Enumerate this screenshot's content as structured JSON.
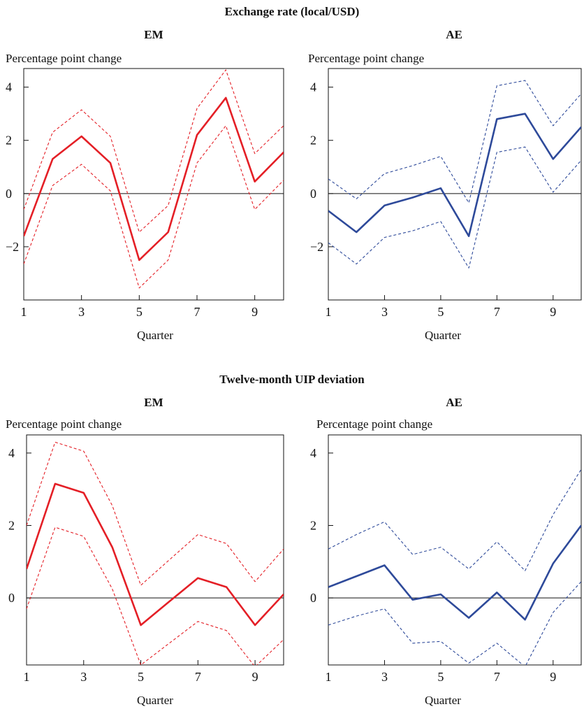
{
  "sections": [
    {
      "title": "Exchange rate (local/USD)",
      "panels": [
        {
          "title": "EM",
          "ylabel": "Percentage point change",
          "xlabel": "Quarter"
        },
        {
          "title": "AE",
          "ylabel": "Percentage point change",
          "xlabel": "Quarter"
        }
      ]
    },
    {
      "title": "Twelve-month UIP deviation",
      "panels": [
        {
          "title": "EM",
          "ylabel": "Percentage point change",
          "xlabel": "Quarter"
        },
        {
          "title": "AE",
          "ylabel": "Percentage point change",
          "xlabel": "Quarter"
        }
      ]
    }
  ],
  "colors": {
    "em": "#e41f26",
    "ae": "#2e4a9a",
    "axis": "#111111",
    "zero_line": "#111111"
  },
  "chart_data": [
    {
      "type": "line",
      "section": "Exchange rate (local/USD)",
      "title": "EM",
      "xlabel": "Quarter",
      "ylabel": "Percentage point change",
      "xlim": [
        1,
        10
      ],
      "ylim": [
        -4,
        4.7
      ],
      "x_ticks": [
        1,
        3,
        5,
        7,
        9
      ],
      "y_ticks": [
        -2,
        0,
        2,
        4
      ],
      "y_tick_labels": [
        "−2",
        "0",
        "2",
        "4"
      ],
      "x": [
        1,
        2,
        3,
        4,
        5,
        6,
        7,
        8,
        9,
        10
      ],
      "series": [
        {
          "role": "estimate",
          "values": [
            -1.6,
            1.3,
            2.15,
            1.15,
            -2.5,
            -1.45,
            2.2,
            3.6,
            0.45,
            1.55
          ]
        },
        {
          "role": "upper",
          "values": [
            -0.6,
            2.3,
            3.15,
            2.15,
            -1.45,
            -0.45,
            3.2,
            4.65,
            1.5,
            2.55
          ]
        },
        {
          "role": "lower",
          "values": [
            -2.65,
            0.3,
            1.1,
            0.1,
            -3.55,
            -2.5,
            1.15,
            2.55,
            -0.6,
            0.5
          ]
        }
      ]
    },
    {
      "type": "line",
      "section": "Exchange rate (local/USD)",
      "title": "AE",
      "xlabel": "Quarter",
      "ylabel": "Percentage point change",
      "xlim": [
        1,
        10
      ],
      "ylim": [
        -4,
        4.7
      ],
      "x_ticks": [
        1,
        3,
        5,
        7,
        9
      ],
      "y_ticks": [
        -2,
        0,
        2,
        4
      ],
      "y_tick_labels": [
        "−2",
        "0",
        "2",
        "4"
      ],
      "x": [
        1,
        2,
        3,
        4,
        5,
        6,
        7,
        8,
        9,
        10
      ],
      "series": [
        {
          "role": "estimate",
          "values": [
            -0.65,
            -1.45,
            -0.45,
            -0.15,
            0.2,
            -1.6,
            2.8,
            3.0,
            1.3,
            2.5
          ]
        },
        {
          "role": "upper",
          "values": [
            0.55,
            -0.2,
            0.75,
            1.05,
            1.4,
            -0.35,
            4.05,
            4.25,
            2.55,
            3.75
          ]
        },
        {
          "role": "lower",
          "values": [
            -1.85,
            -2.65,
            -1.65,
            -1.4,
            -1.05,
            -2.8,
            1.55,
            1.75,
            0.05,
            1.25
          ]
        }
      ]
    },
    {
      "type": "line",
      "section": "Twelve-month UIP deviation",
      "title": "EM",
      "xlabel": "Quarter",
      "ylabel": "Percentage point change",
      "xlim": [
        1,
        10
      ],
      "ylim": [
        -1.85,
        4.5
      ],
      "x_ticks": [
        1,
        3,
        5,
        7,
        9
      ],
      "y_ticks": [
        0,
        2,
        4
      ],
      "y_tick_labels": [
        "0",
        "2",
        "4"
      ],
      "x": [
        1,
        2,
        3,
        4,
        5,
        6,
        7,
        8,
        9,
        10
      ],
      "series": [
        {
          "role": "estimate",
          "values": [
            0.8,
            3.15,
            2.9,
            1.4,
            -0.75,
            -0.1,
            0.55,
            0.3,
            -0.75,
            0.1
          ]
        },
        {
          "role": "upper",
          "values": [
            2.0,
            4.3,
            4.05,
            2.55,
            0.35,
            1.05,
            1.75,
            1.5,
            0.45,
            1.35
          ]
        },
        {
          "role": "lower",
          "values": [
            -0.3,
            1.95,
            1.7,
            0.25,
            -1.85,
            -1.25,
            -0.65,
            -0.9,
            -1.9,
            -1.15
          ]
        }
      ]
    },
    {
      "type": "line",
      "section": "Twelve-month UIP deviation",
      "title": "AE",
      "xlabel": "Quarter",
      "ylabel": "Percentage point change",
      "xlim": [
        1,
        10
      ],
      "ylim": [
        -1.85,
        4.5
      ],
      "x_ticks": [
        1,
        3,
        5,
        7,
        9
      ],
      "y_ticks": [
        0,
        2,
        4
      ],
      "y_tick_labels": [
        "0",
        "2",
        "4"
      ],
      "x": [
        1,
        2,
        3,
        4,
        5,
        6,
        7,
        8,
        9,
        10
      ],
      "series": [
        {
          "role": "estimate",
          "values": [
            0.3,
            0.6,
            0.9,
            -0.05,
            0.1,
            -0.55,
            0.15,
            -0.6,
            0.95,
            2.0
          ]
        },
        {
          "role": "upper",
          "values": [
            1.35,
            1.75,
            2.1,
            1.2,
            1.4,
            0.8,
            1.55,
            0.75,
            2.3,
            3.55
          ]
        },
        {
          "role": "lower",
          "values": [
            -0.75,
            -0.5,
            -0.3,
            -1.25,
            -1.2,
            -1.8,
            -1.25,
            -1.9,
            -0.4,
            0.45
          ]
        }
      ]
    }
  ]
}
